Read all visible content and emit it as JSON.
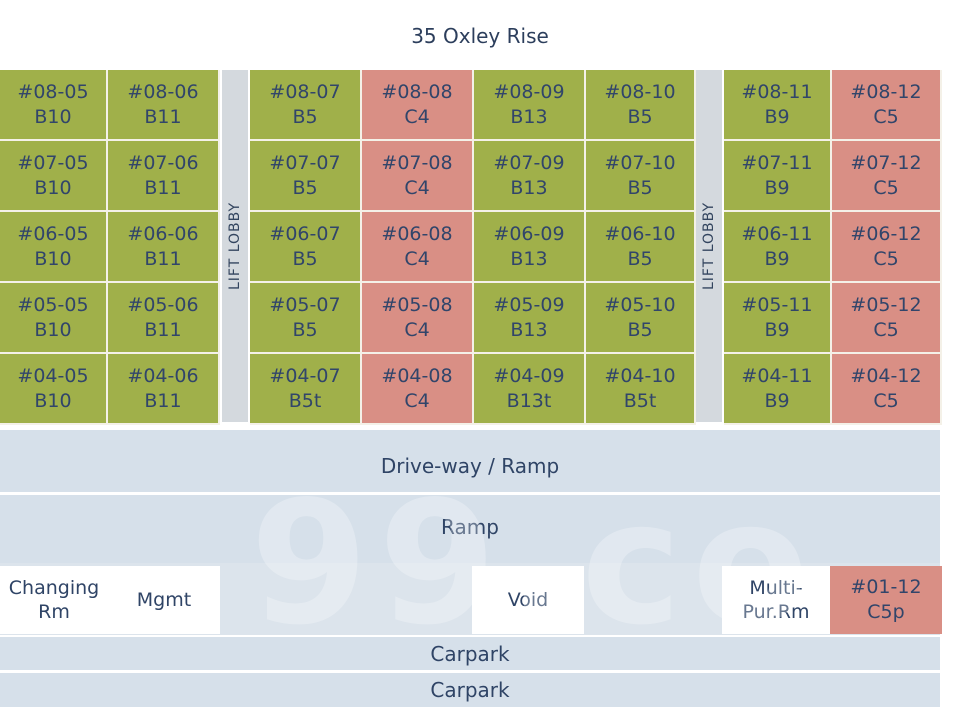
{
  "title": "35 Oxley Rise",
  "watermark": "99.co",
  "lobby_label": "LIFT LOBBY",
  "colors": {
    "green": "#a0b04a",
    "red": "#d98f85",
    "band": "#d6e0ea",
    "lobby": "#d4d9de"
  },
  "floors": [
    {
      "floor": "08",
      "units": [
        {
          "unit": "#08-05",
          "type": "B10",
          "color": "green"
        },
        {
          "unit": "#08-06",
          "type": "B11",
          "color": "green"
        },
        {
          "unit": "#08-07",
          "type": "B5",
          "color": "green"
        },
        {
          "unit": "#08-08",
          "type": "C4",
          "color": "red"
        },
        {
          "unit": "#08-09",
          "type": "B13",
          "color": "green"
        },
        {
          "unit": "#08-10",
          "type": "B5",
          "color": "green"
        },
        {
          "unit": "#08-11",
          "type": "B9",
          "color": "green"
        },
        {
          "unit": "#08-12",
          "type": "C5",
          "color": "red"
        }
      ]
    },
    {
      "floor": "07",
      "units": [
        {
          "unit": "#07-05",
          "type": "B10",
          "color": "green"
        },
        {
          "unit": "#07-06",
          "type": "B11",
          "color": "green"
        },
        {
          "unit": "#07-07",
          "type": "B5",
          "color": "green"
        },
        {
          "unit": "#07-08",
          "type": "C4",
          "color": "red"
        },
        {
          "unit": "#07-09",
          "type": "B13",
          "color": "green"
        },
        {
          "unit": "#07-10",
          "type": "B5",
          "color": "green"
        },
        {
          "unit": "#07-11",
          "type": "B9",
          "color": "green"
        },
        {
          "unit": "#07-12",
          "type": "C5",
          "color": "red"
        }
      ]
    },
    {
      "floor": "06",
      "units": [
        {
          "unit": "#06-05",
          "type": "B10",
          "color": "green"
        },
        {
          "unit": "#06-06",
          "type": "B11",
          "color": "green"
        },
        {
          "unit": "#06-07",
          "type": "B5",
          "color": "green"
        },
        {
          "unit": "#06-08",
          "type": "C4",
          "color": "red"
        },
        {
          "unit": "#06-09",
          "type": "B13",
          "color": "green"
        },
        {
          "unit": "#06-10",
          "type": "B5",
          "color": "green"
        },
        {
          "unit": "#06-11",
          "type": "B9",
          "color": "green"
        },
        {
          "unit": "#06-12",
          "type": "C5",
          "color": "red"
        }
      ]
    },
    {
      "floor": "05",
      "units": [
        {
          "unit": "#05-05",
          "type": "B10",
          "color": "green"
        },
        {
          "unit": "#05-06",
          "type": "B11",
          "color": "green"
        },
        {
          "unit": "#05-07",
          "type": "B5",
          "color": "green"
        },
        {
          "unit": "#05-08",
          "type": "C4",
          "color": "red"
        },
        {
          "unit": "#05-09",
          "type": "B13",
          "color": "green"
        },
        {
          "unit": "#05-10",
          "type": "B5",
          "color": "green"
        },
        {
          "unit": "#05-11",
          "type": "B9",
          "color": "green"
        },
        {
          "unit": "#05-12",
          "type": "C5",
          "color": "red"
        }
      ]
    },
    {
      "floor": "04",
      "units": [
        {
          "unit": "#04-05",
          "type": "B10",
          "color": "green"
        },
        {
          "unit": "#04-06",
          "type": "B11",
          "color": "green"
        },
        {
          "unit": "#04-07",
          "type": "B5t",
          "color": "green"
        },
        {
          "unit": "#04-08",
          "type": "C4",
          "color": "red"
        },
        {
          "unit": "#04-09",
          "type": "B13t",
          "color": "green"
        },
        {
          "unit": "#04-10",
          "type": "B5t",
          "color": "green"
        },
        {
          "unit": "#04-11",
          "type": "B9",
          "color": "green"
        },
        {
          "unit": "#04-12",
          "type": "C5",
          "color": "red"
        }
      ]
    }
  ],
  "bands": {
    "driveway": "Drive-way / Ramp",
    "ramp": "Ramp",
    "carpark_1": "Carpark",
    "carpark_2": "Carpark"
  },
  "ground": {
    "changing_line1": "Changing",
    "changing_line2": "Rm",
    "mgmt": "Mgmt",
    "void": "Void",
    "multi_line1": "Multi-",
    "multi_line2": "Pur.Rm",
    "unit": "#01-12",
    "unit_type": "C5p"
  }
}
